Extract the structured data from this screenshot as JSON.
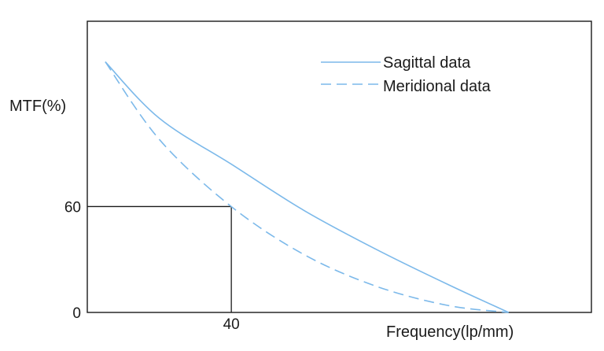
{
  "chart_data": {
    "type": "line",
    "ylabel": "MTF(%)",
    "xlabel": "Frequency(lp/mm)",
    "yticks": [
      {
        "value": 0,
        "label": "0"
      },
      {
        "value": 60,
        "label": "60"
      }
    ],
    "xticks": [
      {
        "value": 40,
        "label": "40"
      }
    ],
    "xlim": [
      0,
      140
    ],
    "ylim": [
      0,
      165
    ],
    "reference": {
      "x": 40,
      "y": 60
    },
    "series": [
      {
        "name": "Sagittal data",
        "style": "solid",
        "color": "#7cb9ea",
        "x": [
          5,
          20,
          40,
          60,
          80,
          100,
          117
        ],
        "y": [
          142,
          110,
          84,
          58,
          36,
          16,
          0
        ]
      },
      {
        "name": "Meridional data",
        "style": "dashed",
        "color": "#7cb9ea",
        "x": [
          5,
          20,
          40,
          60,
          80,
          100,
          117
        ],
        "y": [
          142,
          98,
          60,
          33,
          15,
          4,
          0
        ]
      }
    ],
    "legend": "top-right",
    "grid": false
  }
}
